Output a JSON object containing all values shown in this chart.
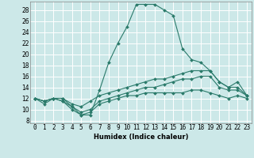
{
  "title": "",
  "xlabel": "Humidex (Indice chaleur)",
  "bg_color": "#cce8e8",
  "line_color": "#2a7a6a",
  "grid_color": "#ffffff",
  "xlim": [
    -0.5,
    23.5
  ],
  "ylim": [
    7.5,
    29.5
  ],
  "yticks": [
    8,
    10,
    12,
    14,
    16,
    18,
    20,
    22,
    24,
    26,
    28
  ],
  "xticks": [
    0,
    1,
    2,
    3,
    4,
    5,
    6,
    7,
    8,
    9,
    10,
    11,
    12,
    13,
    14,
    15,
    16,
    17,
    18,
    19,
    20,
    21,
    22,
    23
  ],
  "line1_x": [
    0,
    1,
    2,
    3,
    4,
    5,
    6,
    7,
    8,
    9,
    10,
    11,
    12,
    13,
    14,
    15,
    16,
    17,
    18,
    19,
    20,
    21,
    22,
    23
  ],
  "line1_y": [
    12.0,
    11.0,
    12.0,
    12.0,
    10.5,
    9.0,
    9.0,
    13.5,
    18.5,
    22.0,
    25.0,
    29.0,
    29.0,
    29.0,
    28.0,
    27.0,
    21.0,
    19.0,
    18.5,
    17.0,
    15.0,
    14.0,
    15.0,
    12.5
  ],
  "line2_x": [
    0,
    1,
    2,
    3,
    4,
    5,
    6,
    7,
    8,
    9,
    10,
    11,
    12,
    13,
    14,
    15,
    16,
    17,
    18,
    19,
    20,
    21,
    22,
    23
  ],
  "line2_y": [
    12.0,
    11.5,
    12.0,
    12.0,
    11.0,
    10.5,
    11.5,
    12.5,
    13.0,
    13.5,
    14.0,
    14.5,
    15.0,
    15.5,
    15.5,
    16.0,
    16.5,
    17.0,
    17.0,
    17.0,
    15.0,
    14.0,
    14.0,
    12.5
  ],
  "line3_x": [
    0,
    1,
    2,
    3,
    4,
    5,
    6,
    7,
    8,
    9,
    10,
    11,
    12,
    13,
    14,
    15,
    16,
    17,
    18,
    19,
    20,
    21,
    22,
    23
  ],
  "line3_y": [
    12.0,
    11.5,
    12.0,
    11.5,
    10.5,
    9.5,
    10.0,
    11.5,
    12.0,
    12.5,
    13.0,
    13.5,
    14.0,
    14.0,
    14.5,
    15.0,
    15.5,
    15.5,
    16.0,
    16.0,
    14.0,
    13.5,
    13.5,
    12.5
  ],
  "line4_x": [
    0,
    1,
    2,
    3,
    4,
    5,
    6,
    7,
    8,
    9,
    10,
    11,
    12,
    13,
    14,
    15,
    16,
    17,
    18,
    19,
    20,
    21,
    22,
    23
  ],
  "line4_y": [
    12.0,
    11.5,
    12.0,
    11.5,
    10.0,
    9.0,
    9.5,
    11.0,
    11.5,
    12.0,
    12.5,
    12.5,
    13.0,
    13.0,
    13.0,
    13.0,
    13.0,
    13.5,
    13.5,
    13.0,
    12.5,
    12.0,
    12.5,
    12.0
  ],
  "xlabel_fontsize": 6.0,
  "tick_fontsize": 5.5,
  "linewidth": 0.8,
  "markersize": 2.0
}
